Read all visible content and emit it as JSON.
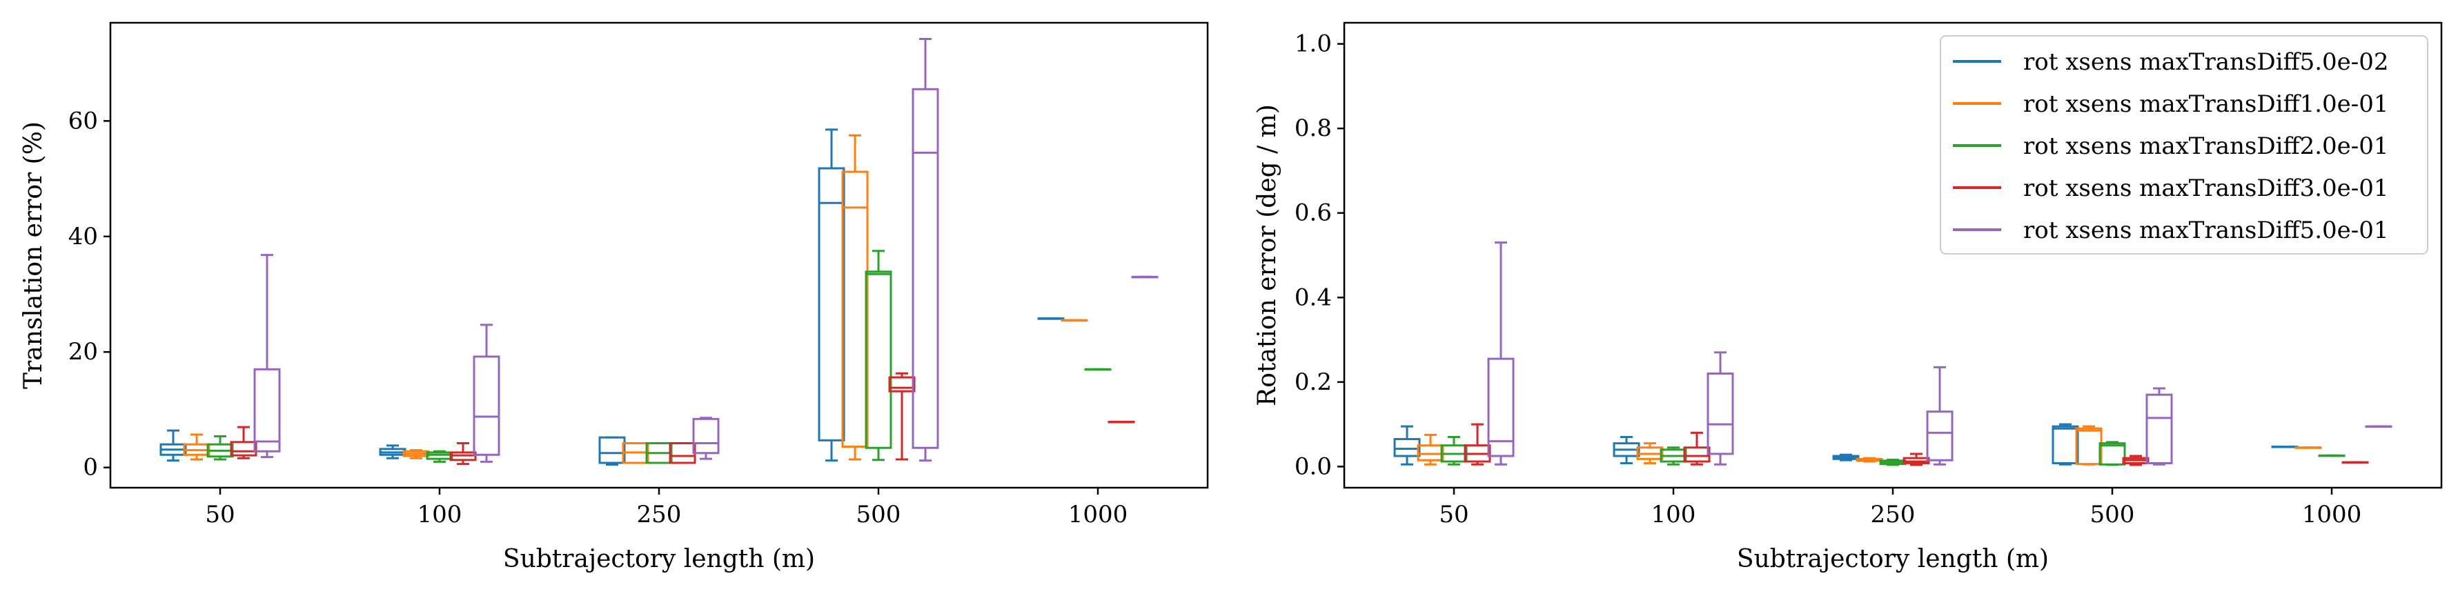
{
  "chart_data": [
    {
      "type": "box",
      "xlabel": "Subtrajectory length (m)",
      "ylabel": "Translation error (%)",
      "ylim": [
        -3.5,
        77
      ],
      "yticks": [
        0,
        20,
        40,
        60
      ],
      "categories": [
        "50",
        "100",
        "250",
        "500",
        "1000"
      ],
      "legend": false,
      "series": [
        {
          "name": "rot xsens maxTransDiff5.0e-02",
          "color": "#1f77b4",
          "boxes": [
            {
              "min": 1.2,
              "q1": 2.2,
              "median": 3.1,
              "q3": 4.0,
              "max": 6.4
            },
            {
              "min": 1.6,
              "q1": 2.2,
              "median": 2.6,
              "q3": 3.2,
              "max": 3.8
            },
            {
              "min": 0.5,
              "q1": 0.8,
              "median": 2.5,
              "q3": 5.2,
              "max": 5.2
            },
            {
              "min": 1.2,
              "q1": 4.7,
              "median": 45.8,
              "q3": 51.8,
              "max": 58.5
            },
            {
              "min": 25.8,
              "q1": 25.8,
              "median": 25.8,
              "q3": 25.8,
              "max": 25.8
            }
          ]
        },
        {
          "name": "rot xsens maxTransDiff1.0e-01",
          "color": "#ff7f0e",
          "boxes": [
            {
              "min": 1.4,
              "q1": 2.2,
              "median": 3.0,
              "q3": 4.0,
              "max": 5.7
            },
            {
              "min": 1.6,
              "q1": 2.0,
              "median": 2.4,
              "q3": 2.8,
              "max": 3.0
            },
            {
              "min": 0.8,
              "q1": 0.8,
              "median": 2.6,
              "q3": 4.2,
              "max": 4.2
            },
            {
              "min": 1.4,
              "q1": 3.6,
              "median": 45.0,
              "q3": 51.2,
              "max": 57.5
            },
            {
              "min": 25.5,
              "q1": 25.5,
              "median": 25.5,
              "q3": 25.5,
              "max": 25.5
            }
          ]
        },
        {
          "name": "rot xsens maxTransDiff2.0e-01",
          "color": "#2ca02c",
          "boxes": [
            {
              "min": 1.4,
              "q1": 1.9,
              "median": 2.9,
              "q3": 4.0,
              "max": 5.4
            },
            {
              "min": 1.0,
              "q1": 1.5,
              "median": 2.2,
              "q3": 2.6,
              "max": 2.8
            },
            {
              "min": 0.8,
              "q1": 0.8,
              "median": 2.5,
              "q3": 4.2,
              "max": 4.2
            },
            {
              "min": 1.3,
              "q1": 3.4,
              "median": 33.5,
              "q3": 33.9,
              "max": 37.5
            },
            {
              "min": 17.0,
              "q1": 17.0,
              "median": 17.0,
              "q3": 17.0,
              "max": 17.0
            }
          ]
        },
        {
          "name": "rot xsens maxTransDiff3.0e-01",
          "color": "#d62728",
          "boxes": [
            {
              "min": 1.6,
              "q1": 2.1,
              "median": 2.8,
              "q3": 4.4,
              "max": 7.0
            },
            {
              "min": 0.6,
              "q1": 1.3,
              "median": 2.1,
              "q3": 2.6,
              "max": 4.2
            },
            {
              "min": 0.8,
              "q1": 0.8,
              "median": 2.0,
              "q3": 4.2,
              "max": 4.2
            },
            {
              "min": 1.4,
              "q1": 13.2,
              "median": 13.8,
              "q3": 15.6,
              "max": 16.3
            },
            {
              "min": 7.9,
              "q1": 7.9,
              "median": 7.9,
              "q3": 7.9,
              "max": 7.9
            }
          ]
        },
        {
          "name": "rot xsens maxTransDiff5.0e-01",
          "color": "#9467bd",
          "boxes": [
            {
              "min": 1.8,
              "q1": 2.8,
              "median": 4.5,
              "q3": 17.0,
              "max": 36.8
            },
            {
              "min": 1.0,
              "q1": 2.2,
              "median": 8.8,
              "q3": 19.2,
              "max": 24.7
            },
            {
              "min": 1.5,
              "q1": 2.5,
              "median": 4.2,
              "q3": 8.4,
              "max": 8.6
            },
            {
              "min": 1.2,
              "q1": 3.4,
              "median": 54.5,
              "q3": 65.5,
              "max": 74.2
            },
            {
              "min": 33.0,
              "q1": 33.0,
              "median": 33.0,
              "q3": 33.0,
              "max": 33.0
            }
          ]
        }
      ]
    },
    {
      "type": "box",
      "xlabel": "Subtrajectory length (m)",
      "ylabel": "Rotation error (deg / m)",
      "ylim": [
        -0.05,
        1.05
      ],
      "yticks": [
        0.0,
        0.2,
        0.4,
        0.6,
        0.8,
        1.0
      ],
      "categories": [
        "50",
        "100",
        "250",
        "500",
        "1000"
      ],
      "legend": true,
      "legend_position": "top-right",
      "series": [
        {
          "name": "rot xsens maxTransDiff5.0e-02",
          "color": "#1f77b4",
          "boxes": [
            {
              "min": 0.005,
              "q1": 0.025,
              "median": 0.042,
              "q3": 0.065,
              "max": 0.095
            },
            {
              "min": 0.008,
              "q1": 0.025,
              "median": 0.04,
              "q3": 0.055,
              "max": 0.07
            },
            {
              "min": 0.015,
              "q1": 0.018,
              "median": 0.022,
              "q3": 0.025,
              "max": 0.028
            },
            {
              "min": 0.005,
              "q1": 0.008,
              "median": 0.09,
              "q3": 0.095,
              "max": 0.1
            },
            {
              "min": 0.047,
              "q1": 0.047,
              "median": 0.047,
              "q3": 0.047,
              "max": 0.047
            }
          ]
        },
        {
          "name": "rot xsens maxTransDiff1.0e-01",
          "color": "#ff7f0e",
          "boxes": [
            {
              "min": 0.005,
              "q1": 0.015,
              "median": 0.03,
              "q3": 0.05,
              "max": 0.075
            },
            {
              "min": 0.008,
              "q1": 0.018,
              "median": 0.03,
              "q3": 0.045,
              "max": 0.055
            },
            {
              "min": 0.012,
              "q1": 0.014,
              "median": 0.016,
              "q3": 0.018,
              "max": 0.02
            },
            {
              "min": 0.005,
              "q1": 0.006,
              "median": 0.085,
              "q3": 0.09,
              "max": 0.095
            },
            {
              "min": 0.045,
              "q1": 0.045,
              "median": 0.045,
              "q3": 0.045,
              "max": 0.045
            }
          ]
        },
        {
          "name": "rot xsens maxTransDiff2.0e-01",
          "color": "#2ca02c",
          "boxes": [
            {
              "min": 0.005,
              "q1": 0.012,
              "median": 0.03,
              "q3": 0.05,
              "max": 0.07
            },
            {
              "min": 0.005,
              "q1": 0.012,
              "median": 0.025,
              "q3": 0.04,
              "max": 0.045
            },
            {
              "min": 0.004,
              "q1": 0.006,
              "median": 0.01,
              "q3": 0.014,
              "max": 0.016
            },
            {
              "min": 0.004,
              "q1": 0.005,
              "median": 0.05,
              "q3": 0.055,
              "max": 0.058
            },
            {
              "min": 0.026,
              "q1": 0.026,
              "median": 0.026,
              "q3": 0.026,
              "max": 0.026
            }
          ]
        },
        {
          "name": "rot xsens maxTransDiff3.0e-01",
          "color": "#d62728",
          "boxes": [
            {
              "min": 0.005,
              "q1": 0.012,
              "median": 0.03,
              "q3": 0.05,
              "max": 0.1
            },
            {
              "min": 0.005,
              "q1": 0.012,
              "median": 0.025,
              "q3": 0.045,
              "max": 0.08
            },
            {
              "min": 0.004,
              "q1": 0.008,
              "median": 0.012,
              "q3": 0.02,
              "max": 0.03
            },
            {
              "min": 0.004,
              "q1": 0.008,
              "median": 0.015,
              "q3": 0.02,
              "max": 0.025
            },
            {
              "min": 0.01,
              "q1": 0.01,
              "median": 0.01,
              "q3": 0.01,
              "max": 0.01
            }
          ]
        },
        {
          "name": "rot xsens maxTransDiff5.0e-01",
          "color": "#9467bd",
          "boxes": [
            {
              "min": 0.005,
              "q1": 0.025,
              "median": 0.06,
              "q3": 0.255,
              "max": 0.53
            },
            {
              "min": 0.005,
              "q1": 0.03,
              "median": 0.1,
              "q3": 0.22,
              "max": 0.27
            },
            {
              "min": 0.005,
              "q1": 0.015,
              "median": 0.08,
              "q3": 0.13,
              "max": 0.235
            },
            {
              "min": 0.005,
              "q1": 0.008,
              "median": 0.115,
              "q3": 0.17,
              "max": 0.185
            },
            {
              "min": 0.095,
              "q1": 0.095,
              "median": 0.095,
              "q3": 0.095,
              "max": 0.095
            }
          ]
        }
      ]
    }
  ]
}
